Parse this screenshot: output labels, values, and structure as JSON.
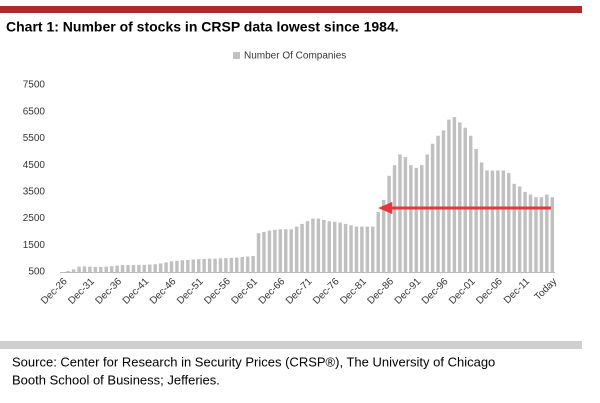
{
  "chart_data": {
    "type": "bar",
    "title": "Chart 1: Number of stocks in CRSP data lowest since 1984.",
    "categories": [
      "Dec-26",
      null,
      null,
      null,
      null,
      "Dec-31",
      null,
      null,
      null,
      null,
      "Dec-36",
      null,
      null,
      null,
      null,
      "Dec-41",
      null,
      null,
      null,
      null,
      "Dec-46",
      null,
      null,
      null,
      null,
      "Dec-51",
      null,
      null,
      null,
      null,
      "Dec-56",
      null,
      null,
      null,
      null,
      "Dec-61",
      null,
      null,
      null,
      null,
      "Dec-66",
      null,
      null,
      null,
      null,
      "Dec-71",
      null,
      null,
      null,
      null,
      "Dec-76",
      null,
      null,
      null,
      null,
      "Dec-81",
      null,
      null,
      null,
      null,
      "Dec-86",
      null,
      null,
      null,
      null,
      "Dec-91",
      null,
      null,
      null,
      null,
      "Dec-96",
      null,
      null,
      null,
      null,
      "Dec-01",
      null,
      null,
      null,
      null,
      "Dec-06",
      null,
      null,
      null,
      null,
      "Dec-11",
      null,
      null,
      null,
      null,
      "Today"
    ],
    "series": [
      {
        "name": "Number Of Companies",
        "color": "#c0c0c0",
        "values": [
          500,
          540,
          600,
          700,
          710,
          700,
          690,
          690,
          700,
          720,
          740,
          760,
          760,
          760,
          770,
          770,
          780,
          790,
          820,
          860,
          900,
          920,
          940,
          950,
          970,
          980,
          990,
          1000,
          1000,
          1010,
          1020,
          1030,
          1040,
          1060,
          1080,
          1100,
          1950,
          2000,
          2050,
          2080,
          2100,
          2100,
          2100,
          2200,
          2300,
          2400,
          2500,
          2500,
          2450,
          2400,
          2380,
          2350,
          2300,
          2250,
          2200,
          2200,
          2200,
          2200,
          2750,
          3200,
          4100,
          4500,
          4900,
          4800,
          4500,
          4400,
          4500,
          4900,
          5300,
          5600,
          5800,
          6200,
          6300,
          6100,
          5900,
          5600,
          5100,
          4600,
          4300,
          4300,
          4300,
          4300,
          4200,
          3800,
          3700,
          3500,
          3400,
          3300,
          3300,
          3400,
          3300
        ]
      }
    ],
    "ylim": [
      500,
      7500
    ],
    "yticks": [
      500,
      1500,
      2500,
      3500,
      4500,
      5500,
      6500,
      7500
    ],
    "grid": false,
    "legend": "top",
    "source": [
      "Source: Center for Research in Security Prices (CRSP®), The University of Chicago",
      "Booth School of Business; Jefferies."
    ]
  }
}
